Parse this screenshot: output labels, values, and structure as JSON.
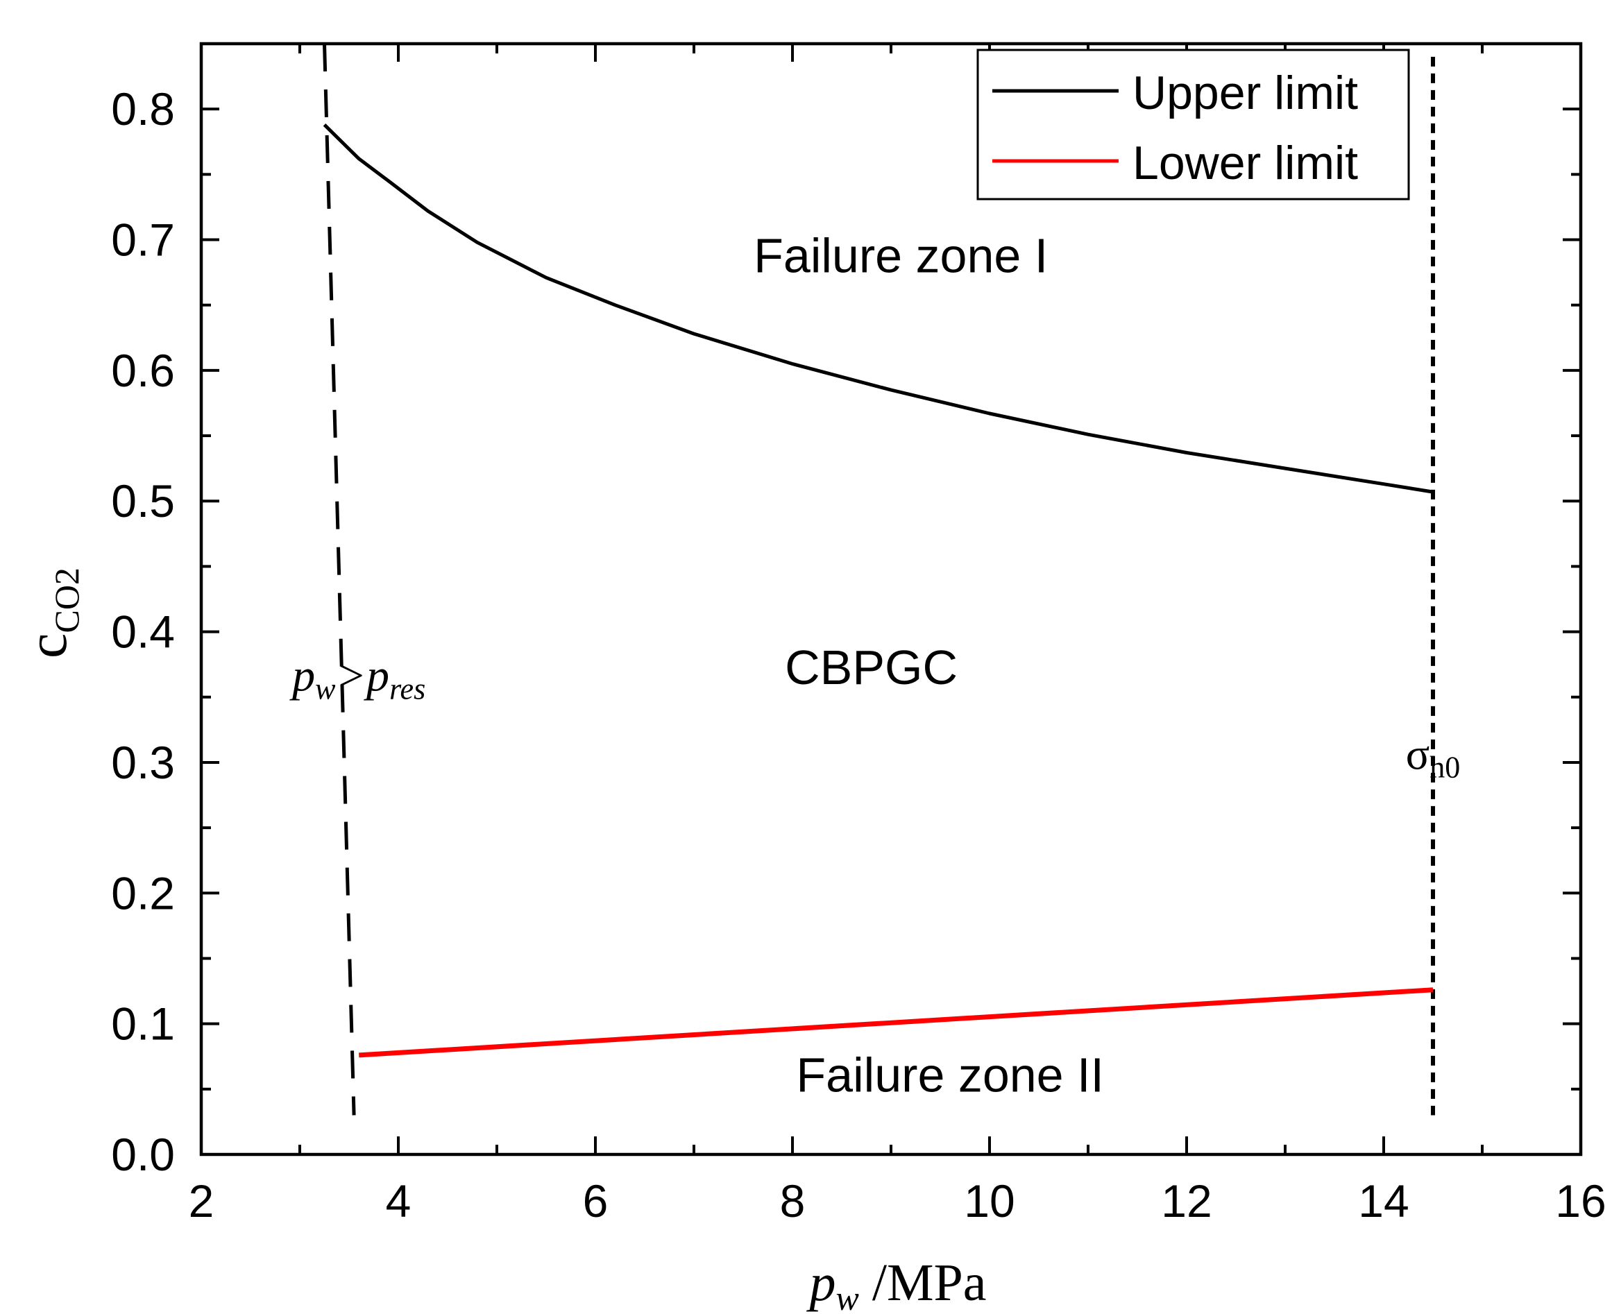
{
  "chart_data": {
    "type": "line",
    "xlabel": {
      "symbol": "p",
      "subscript": "w",
      "unit": " /MPa"
    },
    "ylabel": {
      "symbol": "c",
      "subscript": "CO2"
    },
    "xlim": [
      2,
      16
    ],
    "ylim": [
      0,
      0.85
    ],
    "x_major_ticks": [
      2,
      4,
      6,
      8,
      10,
      12,
      14,
      16
    ],
    "x_tick_labels": [
      "2",
      "4",
      "6",
      "8",
      "10",
      "12",
      "14",
      "16"
    ],
    "y_major_ticks": [
      0.0,
      0.1,
      0.2,
      0.3,
      0.4,
      0.5,
      0.6,
      0.7,
      0.8
    ],
    "y_tick_labels": [
      "0.0",
      "0.1",
      "0.2",
      "0.3",
      "0.4",
      "0.5",
      "0.6",
      "0.7",
      "0.8"
    ],
    "series": [
      {
        "name": "Upper limit",
        "color": "#000000",
        "x": [
          3.25,
          3.6,
          3.9,
          4.3,
          4.8,
          5.5,
          6.2,
          7.0,
          8.0,
          9.0,
          10.0,
          11.0,
          12.0,
          13.0,
          14.0,
          14.5
        ],
        "y": [
          0.788,
          0.762,
          0.745,
          0.722,
          0.698,
          0.671,
          0.65,
          0.628,
          0.605,
          0.585,
          0.567,
          0.551,
          0.537,
          0.525,
          0.513,
          0.507
        ]
      },
      {
        "name": "Lower limit",
        "color": "#ff0000",
        "x": [
          3.6,
          14.5
        ],
        "y": [
          0.076,
          0.126
        ]
      }
    ],
    "reference_lines": [
      {
        "name": "pw-pres-boundary",
        "style": "dashed",
        "x": [
          3.25,
          3.55
        ],
        "y": [
          0.85,
          0.03
        ]
      },
      {
        "name": "sigma-h0-boundary",
        "style": "dotted",
        "x": [
          14.5,
          14.5
        ],
        "y": [
          0.84,
          0.03
        ]
      }
    ],
    "annotations": {
      "zone1": {
        "text": "Failure zone I",
        "x": 9.1,
        "y": 0.675
      },
      "cbpgc": {
        "text": "CBPGC",
        "x": 8.8,
        "y": 0.36
      },
      "zone2": {
        "text": "Failure zone II",
        "x": 9.6,
        "y": 0.048
      },
      "pres_parts": [
        "p",
        "w",
        ">p",
        "res"
      ],
      "pres_pos": {
        "x": 3.6,
        "y": 0.355
      },
      "sigma_parts": [
        "σ",
        "h0"
      ],
      "sigma_pos": {
        "x": 14.5,
        "y": 0.295
      }
    },
    "legend": {
      "placement": "top-right",
      "entries": [
        "Upper limit",
        "Lower limit"
      ]
    }
  },
  "colors": {
    "axis": "#000000",
    "upper": "#000000",
    "lower": "#ff0000",
    "background": "#ffffff"
  }
}
